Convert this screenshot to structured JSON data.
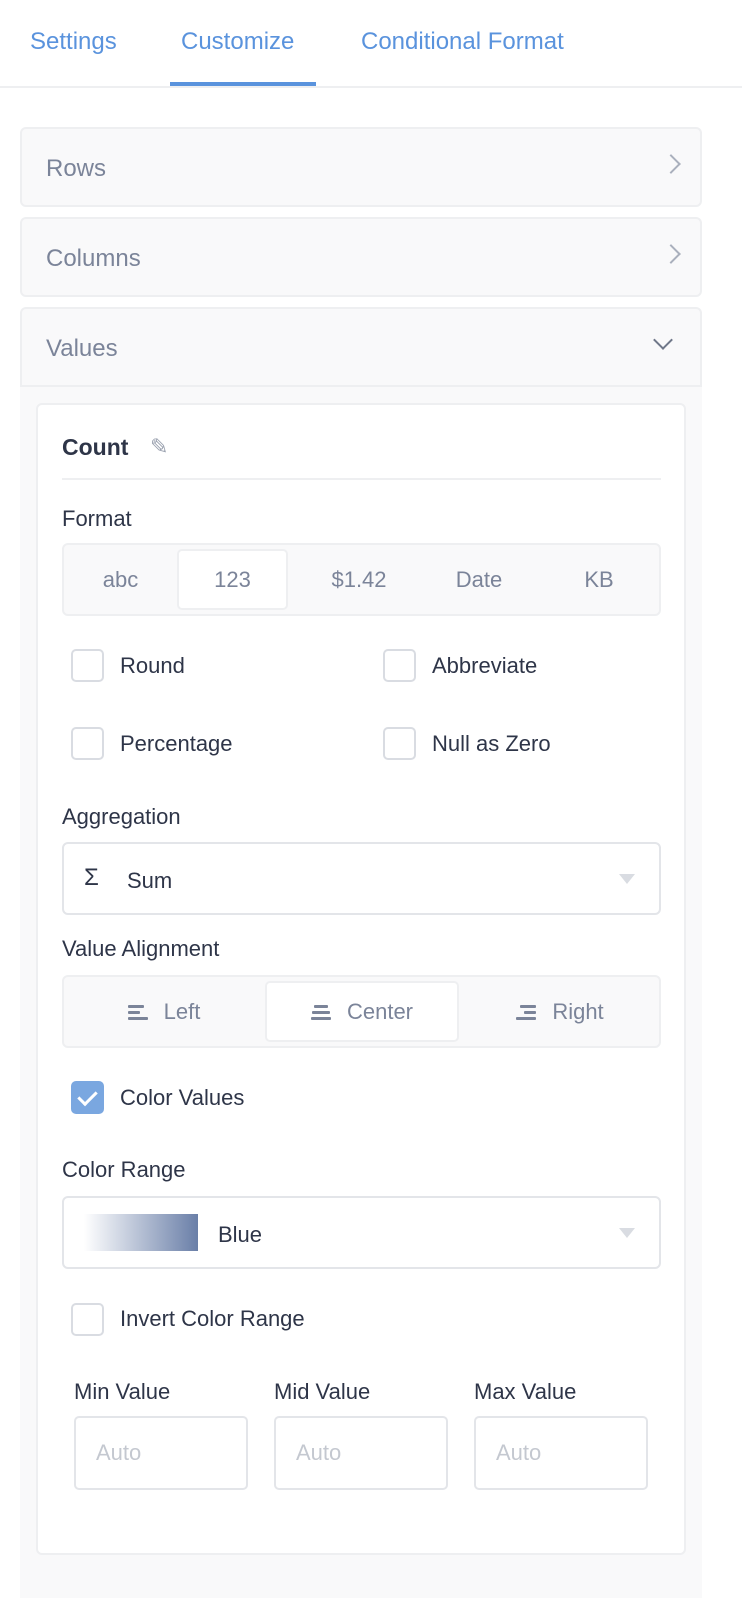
{
  "tabs": [
    {
      "label": "Settings"
    },
    {
      "label": "Customize",
      "active": true
    },
    {
      "label": "Conditional Format"
    }
  ],
  "sections": {
    "rows": "Rows",
    "columns": "Columns",
    "values": "Values"
  },
  "value_card": {
    "title": "Count",
    "format": {
      "label": "Format",
      "options": [
        "abc",
        "123",
        "$1.42",
        "Date",
        "KB"
      ],
      "selected": "123"
    },
    "checkboxes": [
      {
        "label": "Round",
        "checked": false
      },
      {
        "label": "Abbreviate",
        "checked": false
      },
      {
        "label": "Percentage",
        "checked": false
      },
      {
        "label": "Null as Zero",
        "checked": false
      }
    ],
    "aggregation": {
      "label": "Aggregation",
      "icon": "Σ",
      "value": "Sum"
    },
    "alignment": {
      "label": "Value Alignment",
      "options": [
        "Left",
        "Center",
        "Right"
      ],
      "selected": "Center"
    },
    "color_values": {
      "label": "Color Values",
      "checked": true
    },
    "color_range": {
      "label": "Color Range",
      "value": "Blue",
      "gradient": [
        "#ffffff",
        "#6a7fa8"
      ]
    },
    "invert": {
      "label": "Invert Color Range",
      "checked": false
    },
    "min": {
      "label": "Min Value",
      "placeholder": "Auto"
    },
    "mid": {
      "label": "Mid Value",
      "placeholder": "Auto"
    },
    "max": {
      "label": "Max Value",
      "placeholder": "Auto"
    }
  },
  "colors": {
    "accent": "#5a93dd",
    "checkbox_checked": "#7aa7e0"
  }
}
